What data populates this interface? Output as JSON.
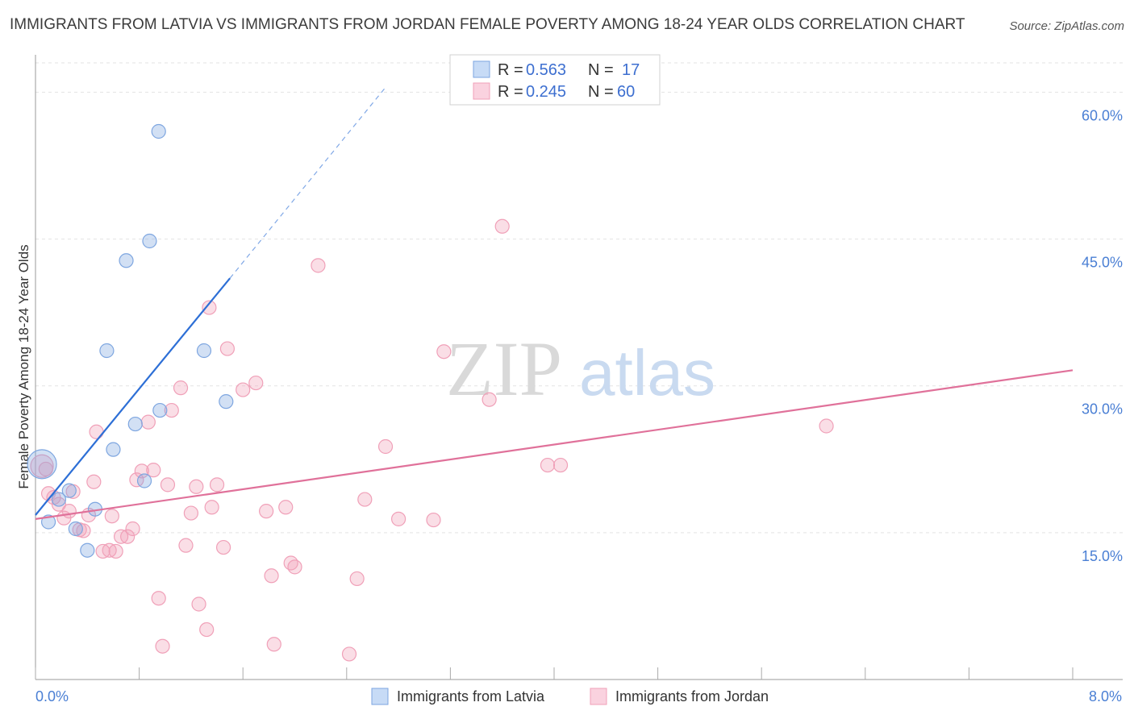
{
  "title": "IMMIGRANTS FROM LATVIA VS IMMIGRANTS FROM JORDAN FEMALE POVERTY AMONG 18-24 YEAR OLDS CORRELATION CHART",
  "source": "Source: ZipAtlas.com",
  "watermark": {
    "zip": "ZIP",
    "atlas": "atlas"
  },
  "legend": {
    "r_label": "R =",
    "n_label": "N =",
    "rows": [
      {
        "r": "0.563",
        "n": "17"
      },
      {
        "r": "0.245",
        "n": "60"
      }
    ]
  },
  "chart_data": {
    "type": "scatter",
    "title": "IMMIGRANTS FROM LATVIA VS IMMIGRANTS FROM JORDAN FEMALE POVERTY AMONG 18-24 YEAR OLDS CORRELATION CHART",
    "xlabel": "",
    "ylabel": "Female Poverty Among 18-24 Year Olds",
    "xlim": [
      0,
      8
    ],
    "ylim": [
      0,
      63
    ],
    "x_tick_labels": [
      "0.0%",
      "8.0%"
    ],
    "y_ticks": [
      15,
      30,
      45,
      60
    ],
    "y_tick_labels": [
      "15.0%",
      "30.0%",
      "45.0%",
      "60.0%"
    ],
    "colors": {
      "latvia": "#7ea6e0",
      "latvia_line": "#2d6fd6",
      "jordan": "#f0a0b8",
      "jordan_line": "#e0719a"
    },
    "series": [
      {
        "name": "Immigrants from Latvia",
        "r": 0.563,
        "n": 17,
        "points": [
          [
            0.05,
            22.0
          ],
          [
            0.1,
            16.1
          ],
          [
            0.18,
            18.4
          ],
          [
            0.26,
            19.3
          ],
          [
            0.31,
            15.4
          ],
          [
            0.4,
            13.2
          ],
          [
            0.46,
            17.4
          ],
          [
            0.55,
            33.6
          ],
          [
            0.6,
            23.5
          ],
          [
            0.77,
            26.1
          ],
          [
            0.7,
            42.8
          ],
          [
            0.84,
            20.3
          ],
          [
            0.88,
            44.8
          ],
          [
            0.95,
            56.0
          ],
          [
            0.96,
            27.5
          ],
          [
            1.3,
            33.6
          ],
          [
            1.47,
            28.4
          ]
        ],
        "trend": {
          "x0": 0.0,
          "y0": 16.8,
          "x1": 1.5,
          "y1": 41.0,
          "dash_to_x": 2.7,
          "dash_to_y": 60.5
        }
      },
      {
        "name": "Immigrants from Jordan",
        "r": 0.245,
        "n": 60,
        "points": [
          [
            0.05,
            21.8
          ],
          [
            0.1,
            19.0
          ],
          [
            0.14,
            18.6
          ],
          [
            0.18,
            17.9
          ],
          [
            0.22,
            16.5
          ],
          [
            0.26,
            17.2
          ],
          [
            0.29,
            19.2
          ],
          [
            0.34,
            15.3
          ],
          [
            0.37,
            15.2
          ],
          [
            0.41,
            16.8
          ],
          [
            0.45,
            20.2
          ],
          [
            0.47,
            25.3
          ],
          [
            0.52,
            13.1
          ],
          [
            0.57,
            13.2
          ],
          [
            0.59,
            16.7
          ],
          [
            0.62,
            13.1
          ],
          [
            0.66,
            14.6
          ],
          [
            0.71,
            14.6
          ],
          [
            0.75,
            15.4
          ],
          [
            0.78,
            20.4
          ],
          [
            0.82,
            21.3
          ],
          [
            0.87,
            26.3
          ],
          [
            0.91,
            21.4
          ],
          [
            0.95,
            8.3
          ],
          [
            0.98,
            3.4
          ],
          [
            1.02,
            19.9
          ],
          [
            1.05,
            27.5
          ],
          [
            1.12,
            29.8
          ],
          [
            1.16,
            13.7
          ],
          [
            1.2,
            17.0
          ],
          [
            1.24,
            19.7
          ],
          [
            1.26,
            7.7
          ],
          [
            1.32,
            5.1
          ],
          [
            1.34,
            38.0
          ],
          [
            1.36,
            17.6
          ],
          [
            1.4,
            19.9
          ],
          [
            1.45,
            13.5
          ],
          [
            1.48,
            33.8
          ],
          [
            1.6,
            29.6
          ],
          [
            1.7,
            30.3
          ],
          [
            1.78,
            17.2
          ],
          [
            1.82,
            10.6
          ],
          [
            1.84,
            3.6
          ],
          [
            1.93,
            17.6
          ],
          [
            1.97,
            11.9
          ],
          [
            2.0,
            11.5
          ],
          [
            2.18,
            42.3
          ],
          [
            2.42,
            2.6
          ],
          [
            2.48,
            10.3
          ],
          [
            2.54,
            18.4
          ],
          [
            2.7,
            23.8
          ],
          [
            2.8,
            16.4
          ],
          [
            3.07,
            16.3
          ],
          [
            3.15,
            33.5
          ],
          [
            3.5,
            28.6
          ],
          [
            3.6,
            46.3
          ],
          [
            3.95,
            21.9
          ],
          [
            4.05,
            21.9
          ],
          [
            6.1,
            25.9
          ],
          [
            0.08,
            21.5
          ]
        ],
        "trend": {
          "x0": 0.0,
          "y0": 16.4,
          "x1": 8.0,
          "y1": 31.6
        }
      }
    ]
  }
}
